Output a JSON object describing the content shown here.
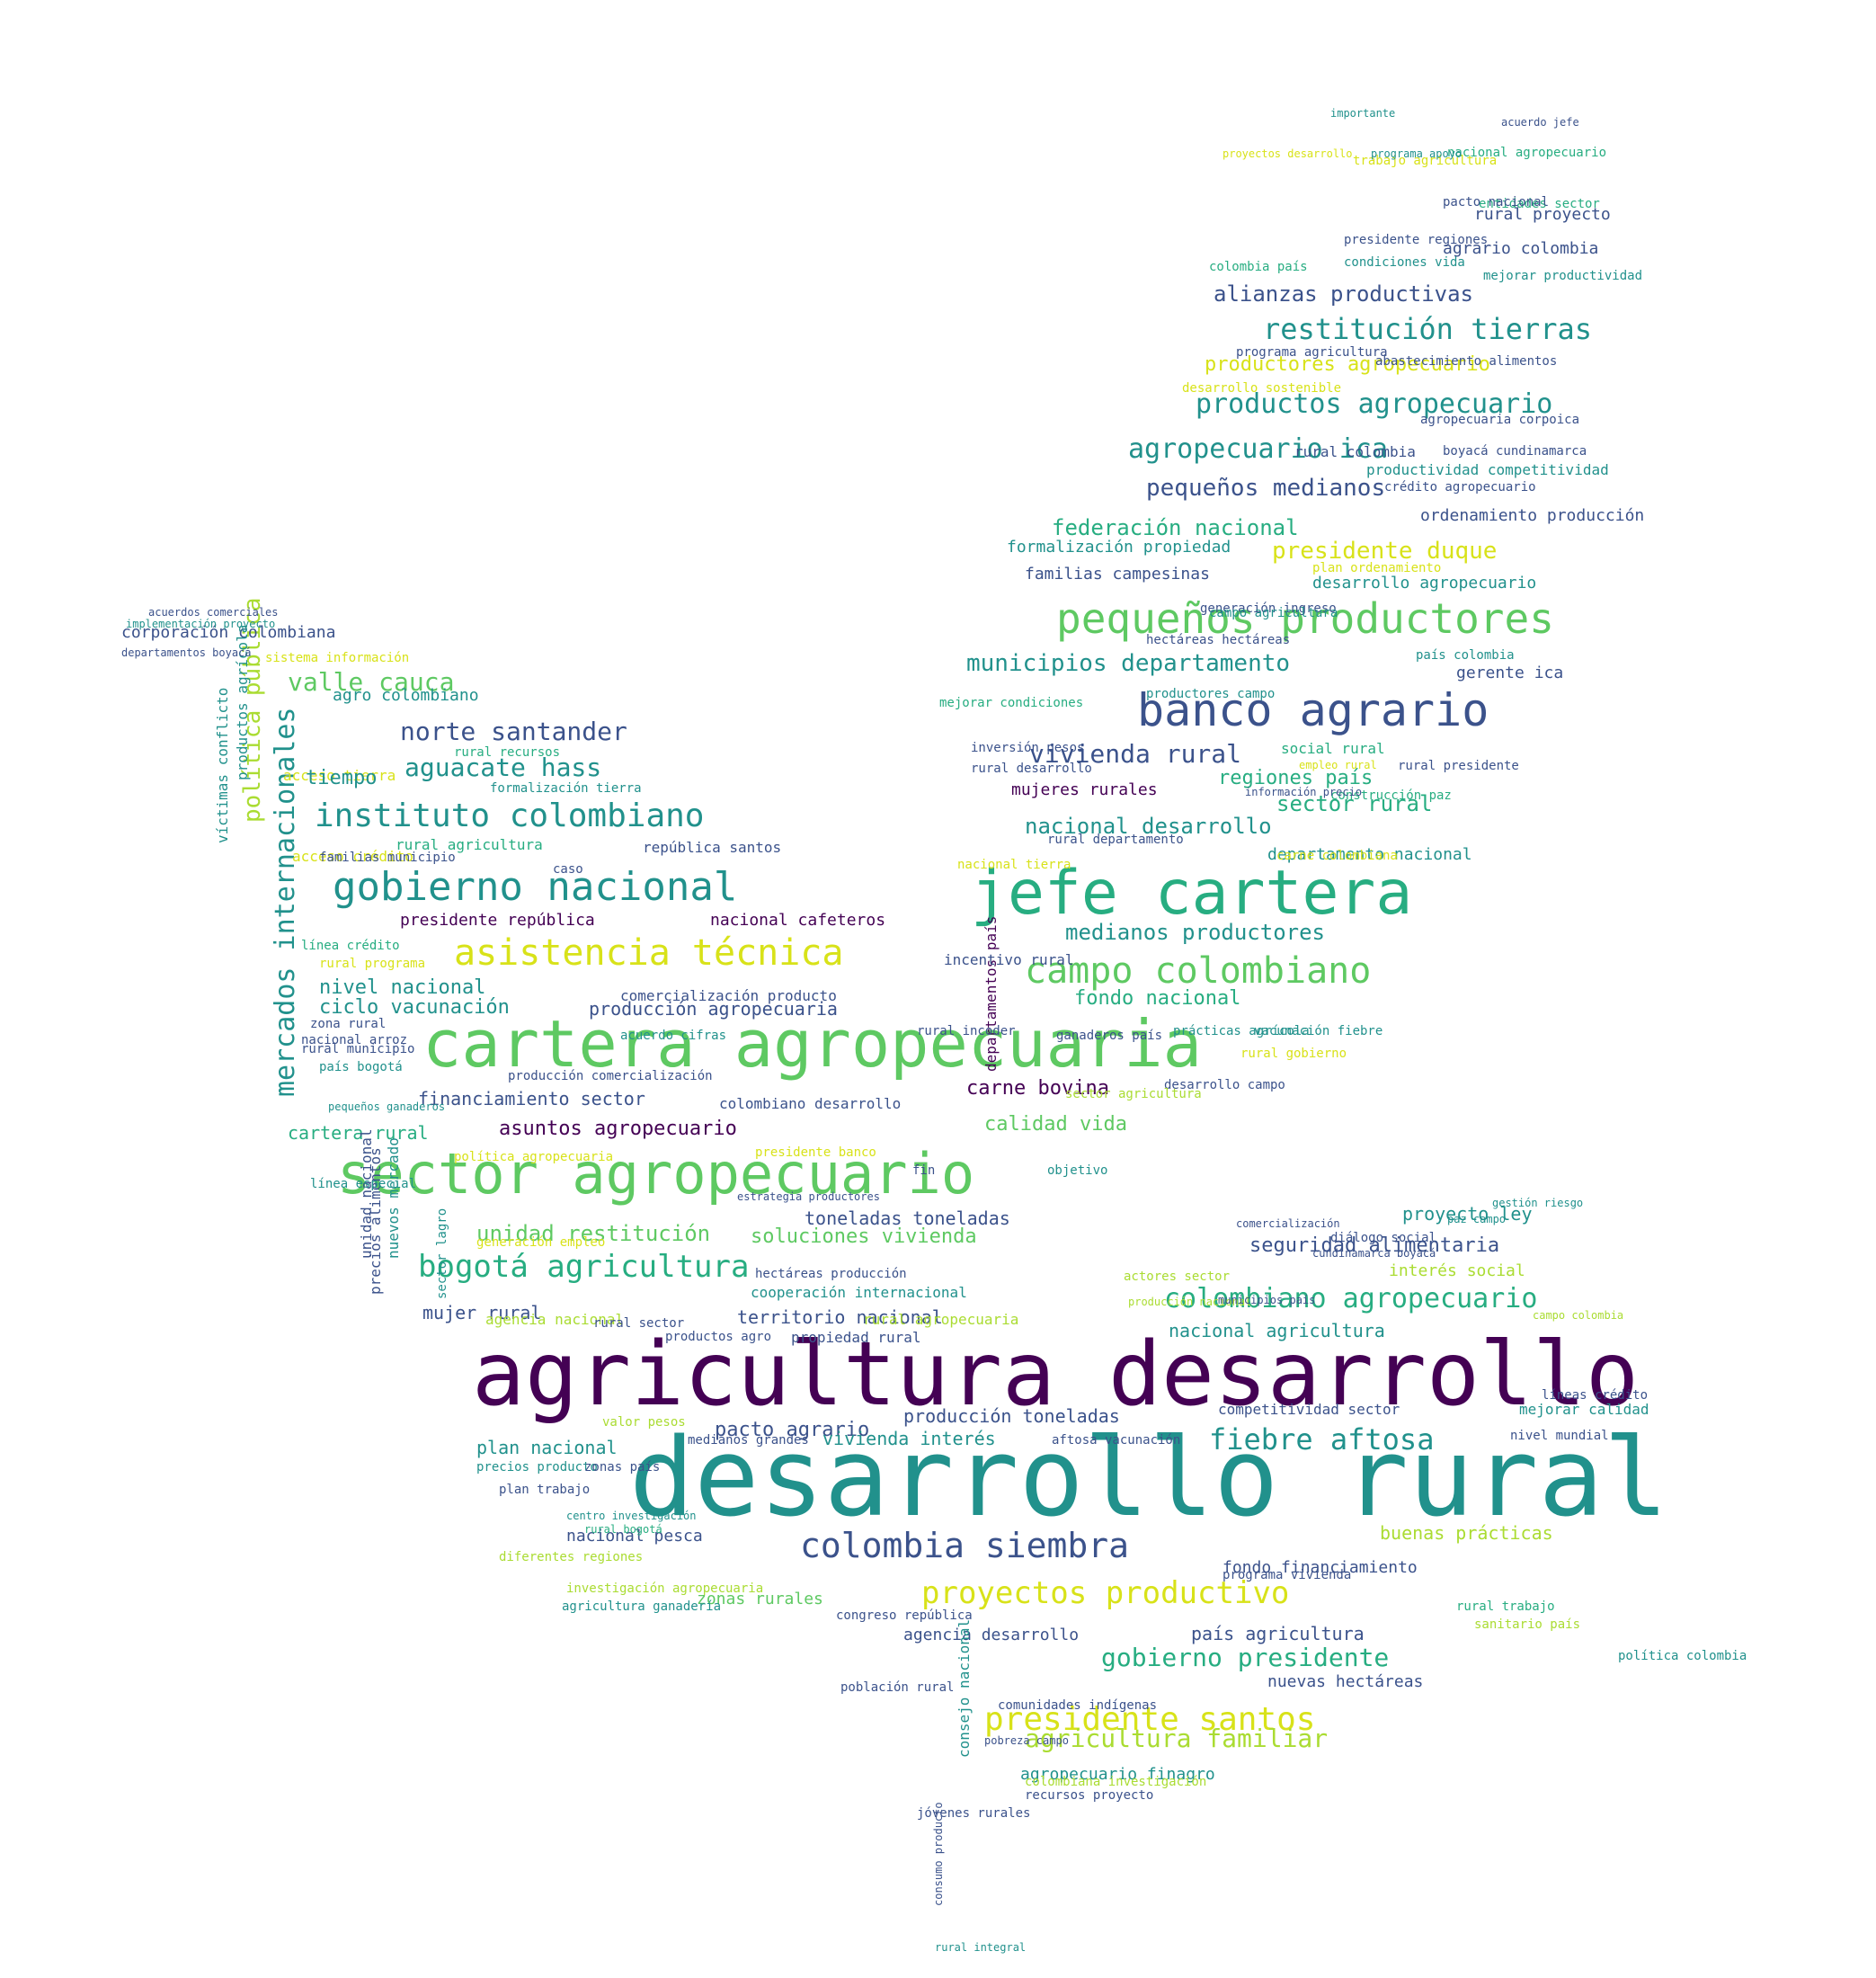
{
  "palette": {
    "dark_purple": "#440154",
    "indigo": "#3b528b",
    "teal": "#21918c",
    "green": "#27ad81",
    "light_green": "#5ec962",
    "yellow_green": "#aadc32",
    "yellow": "#d8e219"
  },
  "words": [
    {
      "text": "desarrollo rural",
      "color": "teal"
    },
    {
      "text": "agricultura desarrollo",
      "color": "dark_purple"
    },
    {
      "text": "cartera agropecuaria",
      "color": "light_green"
    },
    {
      "text": "jefe cartera",
      "color": "green"
    },
    {
      "text": "sector agropecuario",
      "color": "light_green"
    },
    {
      "text": "banco agrario",
      "color": "indigo"
    },
    {
      "text": "gobierno nacional",
      "color": "teal"
    },
    {
      "text": "pequeños productores",
      "color": "light_green"
    },
    {
      "text": "asistencia técnica",
      "color": "yellow"
    },
    {
      "text": "campo colombiano",
      "color": "light_green"
    },
    {
      "text": "instituto colombiano",
      "color": "teal"
    },
    {
      "text": "colombia siembra",
      "color": "indigo"
    },
    {
      "text": "presidente santos",
      "color": "yellow"
    },
    {
      "text": "proyectos productivo",
      "color": "yellow"
    },
    {
      "text": "bogotá agricultura",
      "color": "green"
    },
    {
      "text": "fiebre aftosa",
      "color": "teal"
    },
    {
      "text": "mercados internacionales",
      "color": "teal"
    },
    {
      "text": "colombiano agropecuario",
      "color": "green"
    },
    {
      "text": "gobierno presidente",
      "color": "green"
    },
    {
      "text": "restitución tierras",
      "color": "teal"
    },
    {
      "text": "productos agropecuario",
      "color": "teal"
    },
    {
      "text": "agropecuario ica",
      "color": "teal"
    },
    {
      "text": "presidente duque",
      "color": "yellow"
    },
    {
      "text": "municipios departamento",
      "color": "teal"
    },
    {
      "text": "norte santander",
      "color": "indigo"
    },
    {
      "text": "aguacate hass",
      "color": "teal"
    },
    {
      "text": "vivienda rural",
      "color": "indigo"
    },
    {
      "text": "valle cauca",
      "color": "light_green"
    },
    {
      "text": "agricultura familiar",
      "color": "yellow_green"
    },
    {
      "text": "pequeños medianos",
      "color": "indigo"
    },
    {
      "text": "federación nacional",
      "color": "green"
    },
    {
      "text": "alianzas productivas",
      "color": "indigo"
    },
    {
      "text": "política pública",
      "color": "yellow_green"
    },
    {
      "text": "unidad restitución",
      "color": "light_green"
    },
    {
      "text": "soluciones vivienda",
      "color": "light_green"
    },
    {
      "text": "asuntos agropecuario",
      "color": "dark_purple"
    },
    {
      "text": "seguridad alimentaria",
      "color": "indigo"
    },
    {
      "text": "buenas prácticas",
      "color": "yellow_green"
    },
    {
      "text": "calidad vida",
      "color": "light_green"
    },
    {
      "text": "carne bovina",
      "color": "dark_purple"
    },
    {
      "text": "medianos productores",
      "color": "teal"
    },
    {
      "text": "nacional desarrollo",
      "color": "teal"
    },
    {
      "text": "productores agropecuario",
      "color": "yellow"
    },
    {
      "text": "sector rural",
      "color": "green"
    },
    {
      "text": "regiones país",
      "color": "green"
    },
    {
      "text": "fondo nacional",
      "color": "green"
    },
    {
      "text": "nivel nacional",
      "color": "teal"
    },
    {
      "text": "ciclo vacunación",
      "color": "teal"
    },
    {
      "text": "producción agropecuaria",
      "color": "indigo"
    },
    {
      "text": "financiamiento sector",
      "color": "indigo"
    },
    {
      "text": "cartera rural",
      "color": "green"
    },
    {
      "text": "toneladas toneladas",
      "color": "indigo"
    },
    {
      "text": "pacto agrario",
      "color": "indigo"
    },
    {
      "text": "mujer rural",
      "color": "indigo"
    },
    {
      "text": "territorio nacional",
      "color": "indigo"
    },
    {
      "text": "nacional agricultura",
      "color": "teal"
    },
    {
      "text": "vivienda interés",
      "color": "teal"
    },
    {
      "text": "producción toneladas",
      "color": "indigo"
    },
    {
      "text": "plan nacional",
      "color": "teal"
    },
    {
      "text": "nacional pesca",
      "color": "indigo"
    },
    {
      "text": "zonas rurales",
      "color": "light_green"
    },
    {
      "text": "país agricultura",
      "color": "indigo"
    },
    {
      "text": "agencia desarrollo",
      "color": "indigo"
    },
    {
      "text": "agropecuario finagro",
      "color": "teal"
    },
    {
      "text": "nuevas hectáreas",
      "color": "indigo"
    },
    {
      "text": "proyecto ley",
      "color": "teal"
    },
    {
      "text": "interés social",
      "color": "yellow_green"
    },
    {
      "text": "fondo financiamiento",
      "color": "indigo"
    },
    {
      "text": "familias campesinas",
      "color": "indigo"
    },
    {
      "text": "formalización propiedad",
      "color": "teal"
    },
    {
      "text": "desarrollo agropecuario",
      "color": "teal"
    },
    {
      "text": "productividad competitividad",
      "color": "teal"
    },
    {
      "text": "ordenamiento producción",
      "color": "indigo"
    },
    {
      "text": "rural proyecto",
      "color": "indigo"
    },
    {
      "text": "agrario colombia",
      "color": "indigo"
    },
    {
      "text": "gerente ica",
      "color": "indigo"
    },
    {
      "text": "departamento nacional",
      "color": "teal"
    },
    {
      "text": "mujeres rurales",
      "color": "dark_purple"
    },
    {
      "text": "presidente república",
      "color": "dark_purple"
    },
    {
      "text": "nacional cafeteros",
      "color": "dark_purple"
    },
    {
      "text": "rural agricultura",
      "color": "green"
    },
    {
      "text": "departamentos país",
      "color": "dark_purple"
    },
    {
      "text": "agro colombiano",
      "color": "teal"
    },
    {
      "text": "corporación colombiana",
      "color": "indigo"
    },
    {
      "text": "colombiano desarrollo",
      "color": "indigo"
    },
    {
      "text": "comercialización producto",
      "color": "indigo"
    },
    {
      "text": "incentivo rural",
      "color": "indigo"
    },
    {
      "text": "generación empleo",
      "color": "yellow"
    },
    {
      "text": "cooperación internacional",
      "color": "teal"
    },
    {
      "text": "competitividad sector",
      "color": "indigo"
    },
    {
      "text": "mejorar calidad",
      "color": "teal"
    },
    {
      "text": "rural colombia",
      "color": "indigo"
    },
    {
      "text": "social rural",
      "color": "green"
    },
    {
      "text": "acceso tierra",
      "color": "yellow"
    },
    {
      "text": "acceso crédito",
      "color": "yellow"
    },
    {
      "text": "tiempo",
      "color": "teal"
    },
    {
      "text": "república santos",
      "color": "indigo"
    },
    {
      "text": "víctimas conflicto",
      "color": "teal"
    },
    {
      "text": "productos agrícola",
      "color": "teal"
    },
    {
      "text": "consejo nacional",
      "color": "teal"
    },
    {
      "text": "congreso república",
      "color": "indigo"
    },
    {
      "text": "población rural",
      "color": "indigo"
    },
    {
      "text": "comunidades indígenas",
      "color": "indigo"
    },
    {
      "text": "recursos proyecto",
      "color": "indigo"
    },
    {
      "text": "jóvenes rurales",
      "color": "indigo"
    },
    {
      "text": "colombiana investigación",
      "color": "yellow_green"
    },
    {
      "text": "programa vivienda",
      "color": "indigo"
    },
    {
      "text": "sanitario país",
      "color": "yellow_green"
    },
    {
      "text": "política colombia",
      "color": "teal"
    },
    {
      "text": "rural trabajo",
      "color": "green"
    },
    {
      "text": "diferentes regiones",
      "color": "yellow_green"
    },
    {
      "text": "investigación agropecuaria",
      "color": "yellow_green"
    },
    {
      "text": "agricultura ganadería",
      "color": "teal"
    },
    {
      "text": "precios producto",
      "color": "teal"
    },
    {
      "text": "plan trabajo",
      "color": "indigo"
    },
    {
      "text": "agencia nacional",
      "color": "yellow_green"
    },
    {
      "text": "rural sector",
      "color": "indigo"
    },
    {
      "text": "productos agro",
      "color": "indigo"
    },
    {
      "text": "propiedad rural",
      "color": "indigo"
    },
    {
      "text": "rural agropecuaria",
      "color": "yellow_green"
    },
    {
      "text": "valor pesos",
      "color": "yellow_green"
    },
    {
      "text": "medianos grandes",
      "color": "indigo"
    },
    {
      "text": "aftosa vacunación",
      "color": "indigo"
    },
    {
      "text": "nivel mundial",
      "color": "indigo"
    },
    {
      "text": "líneas crédito",
      "color": "indigo"
    },
    {
      "text": "zonas país",
      "color": "indigo"
    },
    {
      "text": "nuevos mercado",
      "color": "teal"
    },
    {
      "text": "unidad nacional",
      "color": "indigo"
    },
    {
      "text": "precios alimentos",
      "color": "indigo"
    },
    {
      "text": "sector lagro",
      "color": "teal"
    },
    {
      "text": "línea especial",
      "color": "teal"
    },
    {
      "text": "política agropecuaria",
      "color": "yellow"
    },
    {
      "text": "presidente banco",
      "color": "yellow"
    },
    {
      "text": "hectáreas producción",
      "color": "indigo"
    },
    {
      "text": "desarrollo campo",
      "color": "indigo"
    },
    {
      "text": "sector agricultura",
      "color": "yellow_green"
    },
    {
      "text": "vacunación fiebre",
      "color": "teal"
    },
    {
      "text": "rural gobierno",
      "color": "yellow"
    },
    {
      "text": "prácticas agrícola",
      "color": "teal"
    },
    {
      "text": "ganaderos país",
      "color": "indigo"
    },
    {
      "text": "rural incoder",
      "color": "indigo"
    },
    {
      "text": "acuerdo cifras",
      "color": "teal"
    },
    {
      "text": "producción comercialización",
      "color": "indigo"
    },
    {
      "text": "rural municipio",
      "color": "indigo"
    },
    {
      "text": "nacional arroz",
      "color": "indigo"
    },
    {
      "text": "país bogotá",
      "color": "teal"
    },
    {
      "text": "zona rural",
      "color": "indigo"
    },
    {
      "text": "pequeños ganaderos",
      "color": "teal"
    },
    {
      "text": "línea crédito",
      "color": "green"
    },
    {
      "text": "rural programa",
      "color": "yellow"
    },
    {
      "text": "familias municipio",
      "color": "indigo"
    },
    {
      "text": "caso",
      "color": "indigo"
    },
    {
      "text": "formalización tierra",
      "color": "teal"
    },
    {
      "text": "rural recursos",
      "color": "green"
    },
    {
      "text": "sistema información",
      "color": "yellow"
    },
    {
      "text": "acuerdos comerciales",
      "color": "indigo"
    },
    {
      "text": "implementación proyecto",
      "color": "teal"
    },
    {
      "text": "departamentos boyacá",
      "color": "indigo"
    },
    {
      "text": "inversión pesos",
      "color": "indigo"
    },
    {
      "text": "rural desarrollo",
      "color": "indigo"
    },
    {
      "text": "mejorar condiciones",
      "color": "green"
    },
    {
      "text": "rural departamento",
      "color": "indigo"
    },
    {
      "text": "rural presidente",
      "color": "indigo"
    },
    {
      "text": "construcción paz",
      "color": "green"
    },
    {
      "text": "nacional tierra",
      "color": "yellow"
    },
    {
      "text": "carne colombiana",
      "color": "yellow"
    },
    {
      "text": "hectáreas hectáreas",
      "color": "indigo"
    },
    {
      "text": "país colombia",
      "color": "teal"
    },
    {
      "text": "productores campo",
      "color": "teal"
    },
    {
      "text": "generación ingreso",
      "color": "indigo"
    },
    {
      "text": "campo agricultura",
      "color": "teal"
    },
    {
      "text": "plan ordenamiento",
      "color": "yellow"
    },
    {
      "text": "crédito agropecuario",
      "color": "indigo"
    },
    {
      "text": "boyacá cundinamarca",
      "color": "indigo"
    },
    {
      "text": "agropecuaria corpoica",
      "color": "indigo"
    },
    {
      "text": "desarrollo sostenible",
      "color": "yellow"
    },
    {
      "text": "programa agricultura",
      "color": "indigo"
    },
    {
      "text": "abastecimiento alimentos",
      "color": "indigo"
    },
    {
      "text": "condiciones vida",
      "color": "teal"
    },
    {
      "text": "colombia país",
      "color": "green"
    },
    {
      "text": "mejorar productividad",
      "color": "teal"
    },
    {
      "text": "entidades sector",
      "color": "green"
    },
    {
      "text": "pacto nacional",
      "color": "indigo"
    },
    {
      "text": "presidente regiones",
      "color": "indigo"
    },
    {
      "text": "trabajo agricultura",
      "color": "yellow"
    },
    {
      "text": "nacional agropecuario",
      "color": "green"
    },
    {
      "text": "importante",
      "color": "teal"
    },
    {
      "text": "proyectos desarrollo",
      "color": "yellow"
    },
    {
      "text": "acuerdo jefe",
      "color": "indigo"
    },
    {
      "text": "programa apoyo",
      "color": "teal"
    },
    {
      "text": "diálogo social",
      "color": "indigo"
    },
    {
      "text": "cundinamarca boyacá",
      "color": "indigo"
    },
    {
      "text": "comercialización",
      "color": "indigo"
    },
    {
      "text": "gestión riesgo",
      "color": "teal"
    },
    {
      "text": "paz campo",
      "color": "teal"
    },
    {
      "text": "actores sector",
      "color": "yellow_green"
    },
    {
      "text": "producción nacional",
      "color": "yellow_green"
    },
    {
      "text": "municipios país",
      "color": "indigo"
    },
    {
      "text": "campo colombia",
      "color": "yellow_green"
    },
    {
      "text": "fin",
      "color": "indigo"
    },
    {
      "text": "estrategia productores",
      "color": "indigo"
    },
    {
      "text": "objetivo",
      "color": "teal"
    },
    {
      "text": "rural integral",
      "color": "teal"
    },
    {
      "text": "consumo producto",
      "color": "indigo"
    },
    {
      "text": "centro investigación",
      "color": "teal"
    },
    {
      "text": "rural bogotá",
      "color": "green"
    },
    {
      "text": "pobreza campo",
      "color": "indigo"
    },
    {
      "text": "empleo rural",
      "color": "yellow"
    },
    {
      "text": "información precio",
      "color": "indigo"
    }
  ]
}
